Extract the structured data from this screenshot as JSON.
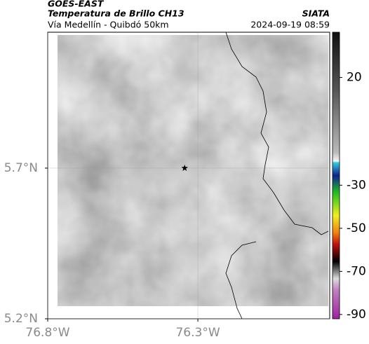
{
  "header": {
    "title": "GOES-EAST",
    "subtitle": "Temperatura de Brillo CH13",
    "source": "SIATA",
    "location": "Vía Medellín - Quibdó 50km",
    "datetime": "2024-09-19 08:59"
  },
  "map": {
    "xlim": [
      -76.8,
      -75.861
    ],
    "ylim": [
      5.2,
      6.151
    ],
    "xticks": [
      {
        "value": -76.8,
        "label": "76.8°W"
      },
      {
        "value": -76.3,
        "label": "76.3°W"
      }
    ],
    "yticks": [
      {
        "value": 5.7,
        "label": "5.7°N"
      },
      {
        "value": 5.2,
        "label": "5.2°N"
      }
    ],
    "grid": true,
    "marker": {
      "lon": -76.344,
      "lat": 5.7
    }
  },
  "colorbar": {
    "lim": [
      -92,
      41
    ],
    "ticks": [
      20,
      -30,
      -50,
      -70,
      -90
    ]
  }
}
